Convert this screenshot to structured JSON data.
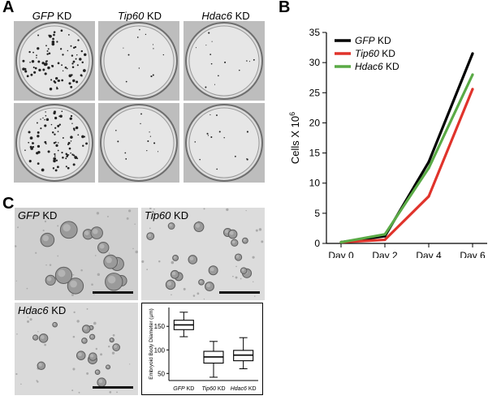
{
  "panels": {
    "a": "A",
    "b": "B",
    "c": "C"
  },
  "panel_a": {
    "columns": [
      {
        "gene": "GFP",
        "suffix": " KD"
      },
      {
        "gene": "Tip60",
        "suffix": " KD"
      },
      {
        "gene": "Hdac6",
        "suffix": " KD"
      }
    ]
  },
  "panel_c": {
    "images": [
      {
        "gene": "GFP",
        "suffix": " KD"
      },
      {
        "gene": "Tip60",
        "suffix": " KD"
      },
      {
        "gene": "Hdac6",
        "suffix": " KD"
      }
    ]
  },
  "colors": {
    "gfp": "#000000",
    "tip60": "#e0332b",
    "hdac6": "#5aaa46"
  },
  "chart_data": [
    {
      "type": "line",
      "categories": [
        "Day 0",
        "Day 2",
        "Day 4",
        "Day 6"
      ],
      "ylabel": "Cells X 10",
      "ylabel_sup": "6",
      "ylim": [
        0,
        35
      ],
      "yticks": [
        0,
        5,
        10,
        15,
        20,
        25,
        30,
        35
      ],
      "legend_position": "top-left",
      "series": [
        {
          "name": "GFP",
          "suffix": " KD",
          "color": "#000000",
          "values": [
            0.2,
            1.2,
            13.5,
            31.5
          ]
        },
        {
          "name": "Tip60",
          "suffix": " KD",
          "color": "#e0332b",
          "values": [
            0.2,
            0.6,
            7.8,
            25.6
          ]
        },
        {
          "name": "Hdac6",
          "suffix": " KD",
          "color": "#5aaa46",
          "values": [
            0.2,
            1.5,
            12.5,
            28.0
          ]
        }
      ]
    },
    {
      "type": "box",
      "categories": [
        "GFP KD",
        "Tip60 KD",
        "Hdac6 KD"
      ],
      "ylabel": "Embryoid Body Diameter (µm)",
      "ylim": [
        35,
        190
      ],
      "yticks": [
        50,
        100,
        150
      ],
      "boxes": [
        {
          "min": 128,
          "q1": 143,
          "median": 153,
          "q3": 163,
          "max": 180
        },
        {
          "min": 42,
          "q1": 72,
          "median": 85,
          "q3": 97,
          "max": 118
        },
        {
          "min": 60,
          "q1": 77,
          "median": 89,
          "q3": 99,
          "max": 126
        }
      ]
    }
  ]
}
